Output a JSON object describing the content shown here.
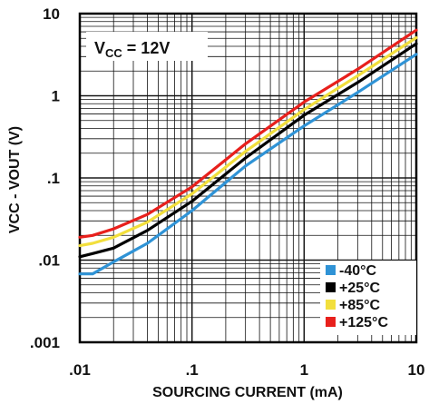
{
  "chart_data": {
    "type": "line",
    "x_scale": "log",
    "y_scale": "log",
    "xlim": [
      0.01,
      10
    ],
    "ylim": [
      0.001,
      10
    ],
    "x_ticks": [
      ".01",
      ".1",
      "1",
      "10"
    ],
    "y_ticks": [
      "10",
      "1",
      ".1",
      ".01",
      ".001"
    ],
    "xlabel": "SOURCING CURRENT (mA)",
    "ylabel": "VCC - VOUT (V)",
    "annotation": {
      "prefix": "V",
      "sub": "CC",
      "suffix": " = 12V"
    },
    "grid": true,
    "legend_position": "bottom-right",
    "series": [
      {
        "name": "-40°C",
        "color": "#2f93d6",
        "x": [
          0.01,
          0.013,
          0.02,
          0.04,
          0.1,
          0.3,
          1,
          3,
          10
        ],
        "y": [
          0.0068,
          0.0068,
          0.0095,
          0.016,
          0.04,
          0.14,
          0.43,
          1.1,
          3.2
        ]
      },
      {
        "name": "+25°C",
        "color": "#000000",
        "x": [
          0.01,
          0.013,
          0.02,
          0.04,
          0.1,
          0.3,
          1,
          3,
          10
        ],
        "y": [
          0.011,
          0.012,
          0.014,
          0.023,
          0.052,
          0.175,
          0.58,
          1.45,
          4.3
        ]
      },
      {
        "name": "+85°C",
        "color": "#f2df3c",
        "x": [
          0.01,
          0.013,
          0.02,
          0.04,
          0.1,
          0.3,
          1,
          3,
          10
        ],
        "y": [
          0.015,
          0.016,
          0.019,
          0.029,
          0.064,
          0.21,
          0.68,
          1.75,
          5.1
        ]
      },
      {
        "name": "+125°C",
        "color": "#e8201c",
        "x": [
          0.01,
          0.013,
          0.02,
          0.04,
          0.1,
          0.3,
          1,
          3,
          10
        ],
        "y": [
          0.019,
          0.02,
          0.024,
          0.036,
          0.078,
          0.26,
          0.84,
          2.1,
          6.3
        ]
      }
    ]
  }
}
